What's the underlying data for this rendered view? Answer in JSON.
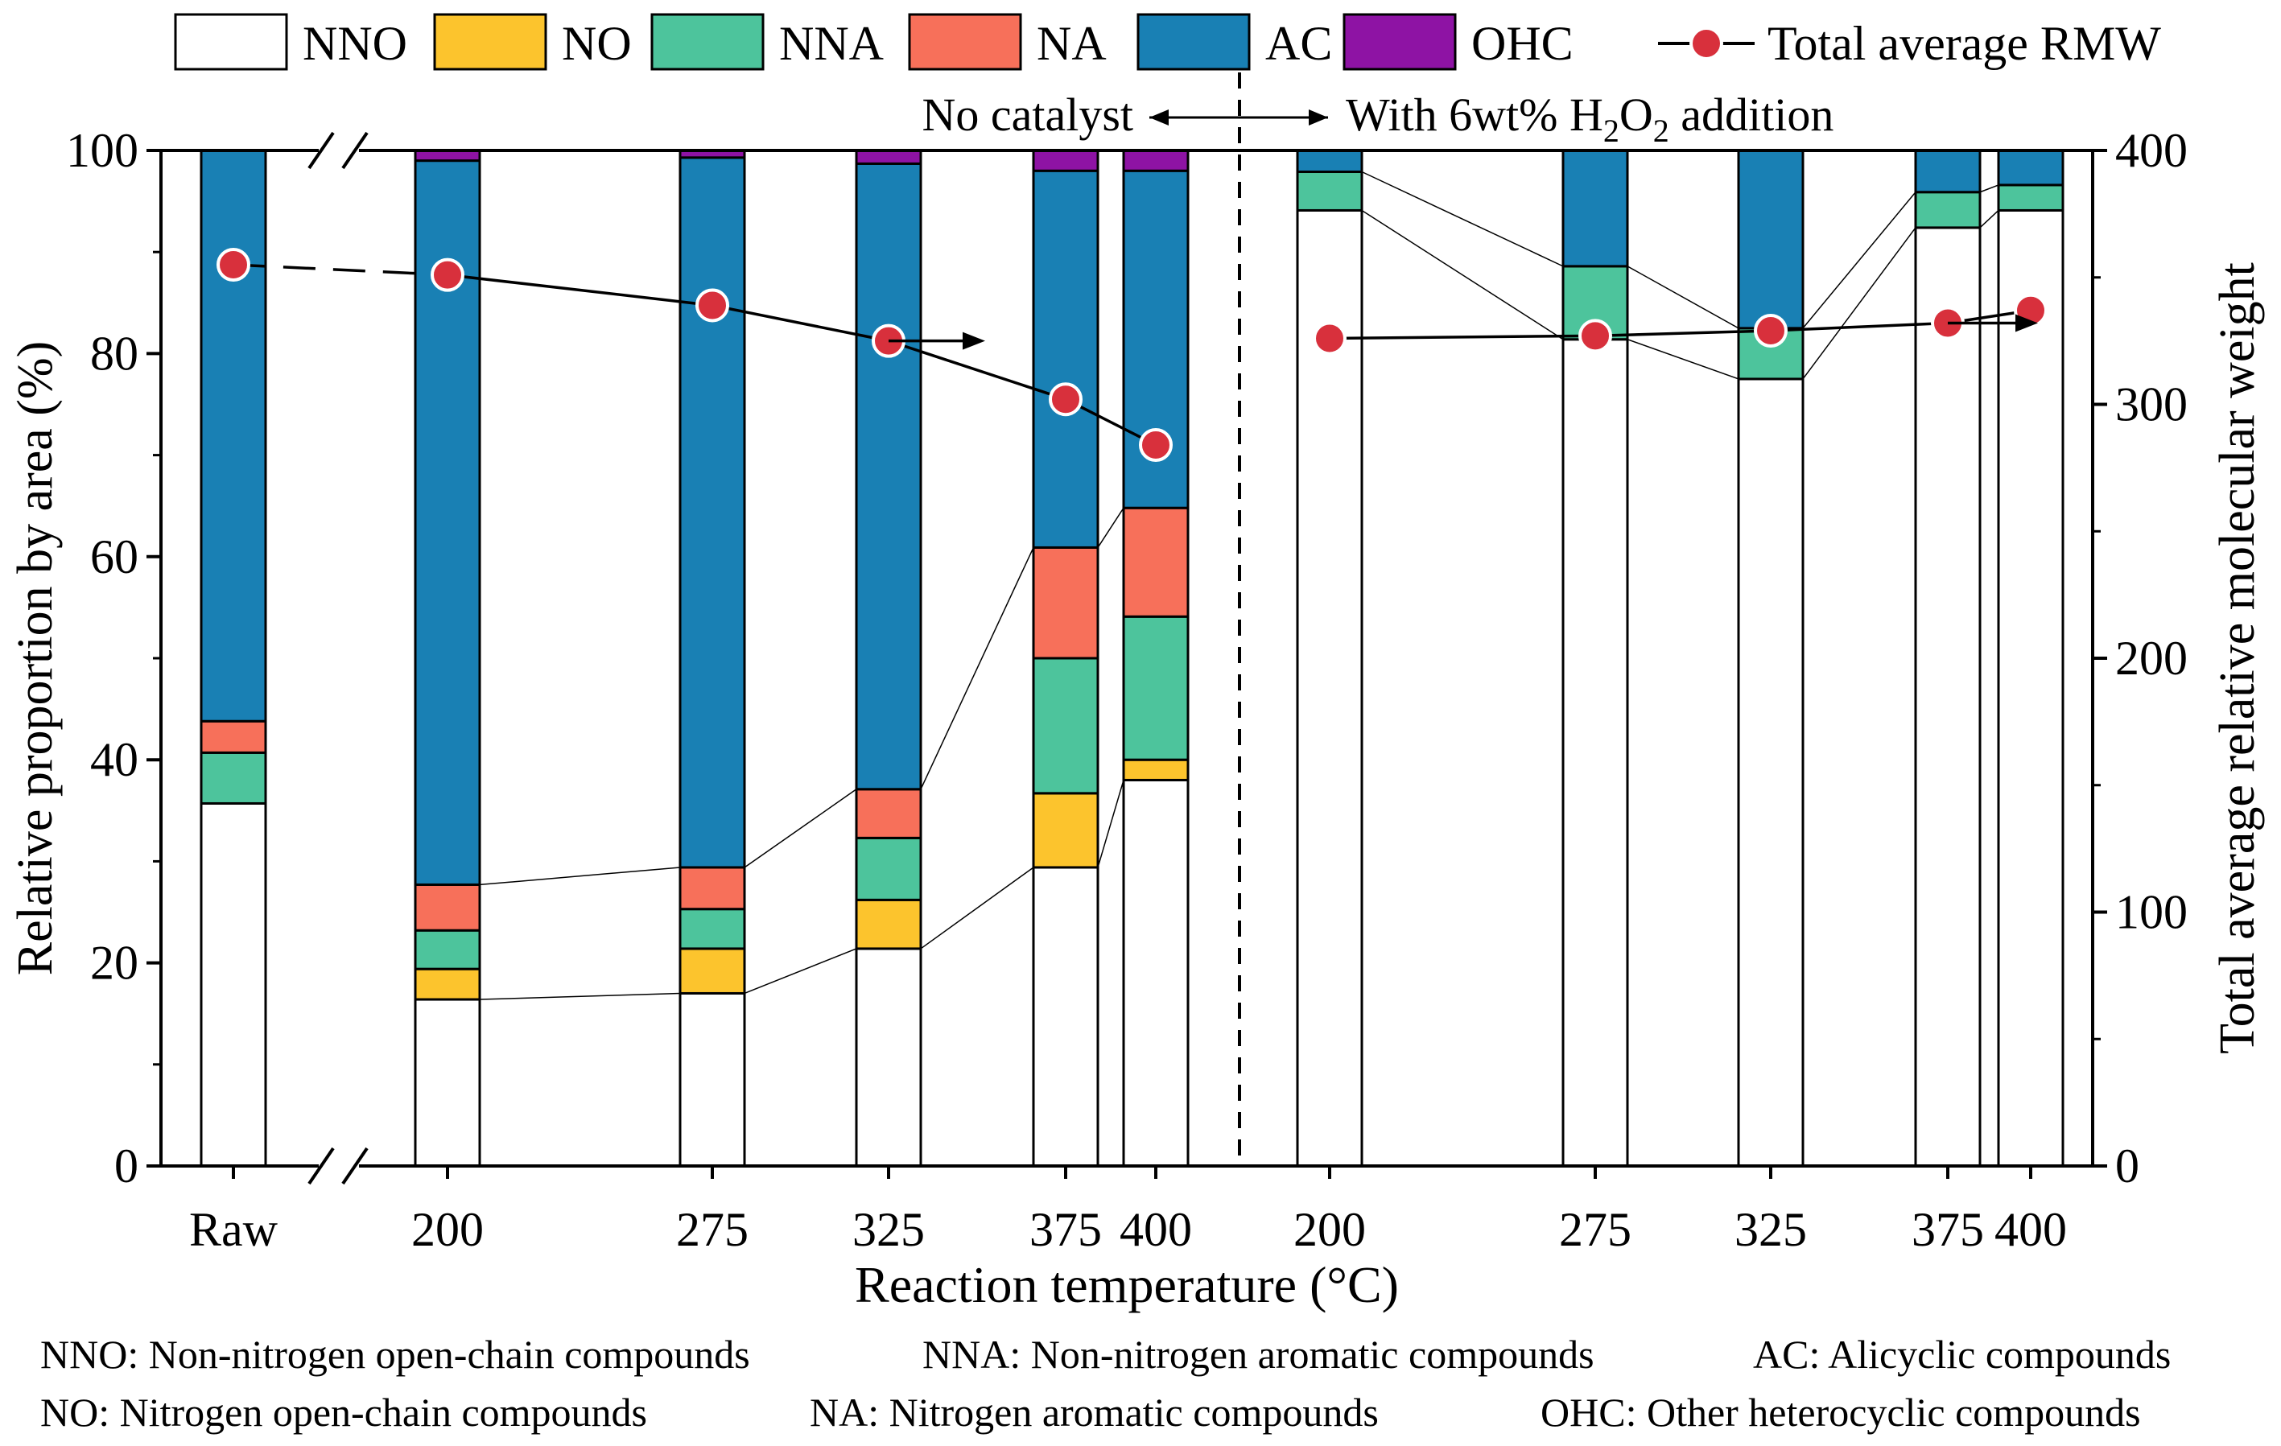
{
  "chart_data": {
    "type": "bar",
    "subtype": "stacked-bar-with-line",
    "title": "",
    "xlabel": "Reaction temperature (°C)",
    "ylabel": "Relative proportion by area (%)",
    "y2label": "Total average relative molecular weight",
    "ylim": [
      0,
      100
    ],
    "y2lim": [
      0,
      400
    ],
    "yticks": [
      "0",
      "20",
      "40",
      "60",
      "80",
      "100"
    ],
    "y2ticks": [
      "0",
      "100",
      "200",
      "300",
      "400"
    ],
    "region_labels": {
      "left": "No catalyst",
      "right_prefix": "With 6wt% H",
      "right_sub1": "2",
      "right_mid": "O",
      "right_sub2": "2",
      "right_suffix": " addition"
    },
    "series_colors": {
      "NNO": "#ffffff",
      "NO": "#fcc42d",
      "NNA": "#4dc49c",
      "NA": "#f7705a",
      "AC": "#1980b4",
      "OHC": "#8e13a4"
    },
    "line_color": "#d8303c",
    "legend": [
      {
        "key": "NNO",
        "label": "NNO"
      },
      {
        "key": "NO",
        "label": "NO"
      },
      {
        "key": "NNA",
        "label": "NNA"
      },
      {
        "key": "NA",
        "label": "NA"
      },
      {
        "key": "AC",
        "label": "AC"
      },
      {
        "key": "OHC",
        "label": "OHC"
      },
      {
        "key": "line",
        "label": "Total average RMW"
      }
    ],
    "groups": [
      {
        "name": "no-catalyst",
        "bars": [
          {
            "label": "Raw",
            "NNO": 35.7,
            "NO": 0,
            "NNA": 5.0,
            "NA": 3.1,
            "AC": 56.2,
            "OHC": 0,
            "rmw": 355
          },
          {
            "label": "200",
            "NNO": 16.4,
            "NO": 3.0,
            "NNA": 3.8,
            "NA": 4.5,
            "AC": 71.3,
            "OHC": 1.0,
            "rmw": 351
          },
          {
            "label": "275",
            "NNO": 17.0,
            "NO": 4.4,
            "NNA": 3.9,
            "NA": 4.1,
            "AC": 69.9,
            "OHC": 0.7,
            "rmw": 339
          },
          {
            "label": "325",
            "NNO": 21.4,
            "NO": 4.8,
            "NNA": 6.1,
            "NA": 4.8,
            "AC": 61.6,
            "OHC": 1.3,
            "rmw": 325
          },
          {
            "label": "375",
            "NNO": 29.4,
            "NO": 7.3,
            "NNA": 13.3,
            "NA": 10.9,
            "AC": 37.1,
            "OHC": 2.0,
            "rmw": 302
          },
          {
            "label": "400",
            "NNO": 38.0,
            "NO": 2.0,
            "NNA": 14.1,
            "NA": 10.7,
            "AC": 33.2,
            "OHC": 2.0,
            "rmw": 284
          }
        ]
      },
      {
        "name": "with-h2o2",
        "bars": [
          {
            "label": "200",
            "NNO": 94.1,
            "NO": 0,
            "NNA": 3.8,
            "NA": 0,
            "AC": 2.1,
            "OHC": 0,
            "rmw": 326
          },
          {
            "label": "275",
            "NNO": 81.4,
            "NO": 0,
            "NNA": 7.2,
            "NA": 0,
            "AC": 11.4,
            "OHC": 0,
            "rmw": 327
          },
          {
            "label": "325",
            "NNO": 77.5,
            "NO": 0,
            "NNA": 5.0,
            "NA": 0,
            "AC": 17.5,
            "OHC": 0,
            "rmw": 329
          },
          {
            "label": "375",
            "NNO": 92.4,
            "NO": 0,
            "NNA": 3.5,
            "NA": 0,
            "AC": 4.1,
            "OHC": 0,
            "rmw": 332
          },
          {
            "label": "400",
            "NNO": 94.1,
            "NO": 0,
            "NNA": 2.5,
            "NA": 0,
            "AC": 3.4,
            "OHC": 0,
            "rmw": 337
          }
        ]
      }
    ],
    "footnotes": [
      "NNO: Non-nitrogen open-chain compounds",
      "NNA: Non-nitrogen aromatic compounds",
      "AC: Alicyclic compounds",
      "NO: Nitrogen open-chain compounds",
      "NA: Nitrogen aromatic compounds",
      "OHC: Other heterocyclic compounds"
    ]
  }
}
